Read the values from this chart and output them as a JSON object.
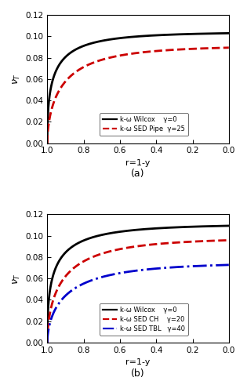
{
  "title_a": "(a)",
  "title_b": "(b)",
  "xlabel": "r=1-y",
  "ylim": [
    0.0,
    0.12
  ],
  "yticks": [
    0.0,
    0.02,
    0.04,
    0.06,
    0.08,
    0.1,
    0.12
  ],
  "xticks": [
    1.0,
    0.8,
    0.6,
    0.4,
    0.2,
    0.0
  ],
  "curves_a": {
    "wilcox": {
      "color": "#000000",
      "ls": "solid",
      "lw": 2.0,
      "vmax": 0.104,
      "k": 4.5,
      "p": 0.48
    },
    "sed": {
      "color": "#cc0000",
      "ls": "dashed",
      "lw": 2.0,
      "vmax": 0.091,
      "k": 4.0,
      "p": 0.6,
      "split": 0.88
    }
  },
  "curves_b": {
    "wilcox": {
      "color": "#000000",
      "ls": "solid",
      "lw": 2.0,
      "vmax": 0.111,
      "k": 4.2,
      "p": 0.47
    },
    "sed_ch": {
      "color": "#cc0000",
      "ls": "dashed",
      "lw": 2.0,
      "vmax": 0.098,
      "k": 3.8,
      "p": 0.58,
      "split": 0.88
    },
    "sed_tbl": {
      "color": "#0000cc",
      "ls": "dashdot",
      "lw": 2.0,
      "vmax": 0.075,
      "k": 3.5,
      "p": 0.6,
      "split": 0.88
    }
  },
  "legend_a": [
    {
      "label": "k-ω Wilcox    γ=0",
      "color": "#000000",
      "ls": "solid"
    },
    {
      "label": "k-ω SED Pipe  γ=25",
      "color": "#cc0000",
      "ls": "dashed"
    }
  ],
  "legend_b": [
    {
      "label": "k-ω Wilcox    γ=0",
      "color": "#000000",
      "ls": "solid"
    },
    {
      "label": "k-ω SED CH    γ=20",
      "color": "#cc0000",
      "ls": "dashed"
    },
    {
      "label": "k-ω SED TBL   γ=40",
      "color": "#0000cc",
      "ls": "dashdot"
    }
  ]
}
